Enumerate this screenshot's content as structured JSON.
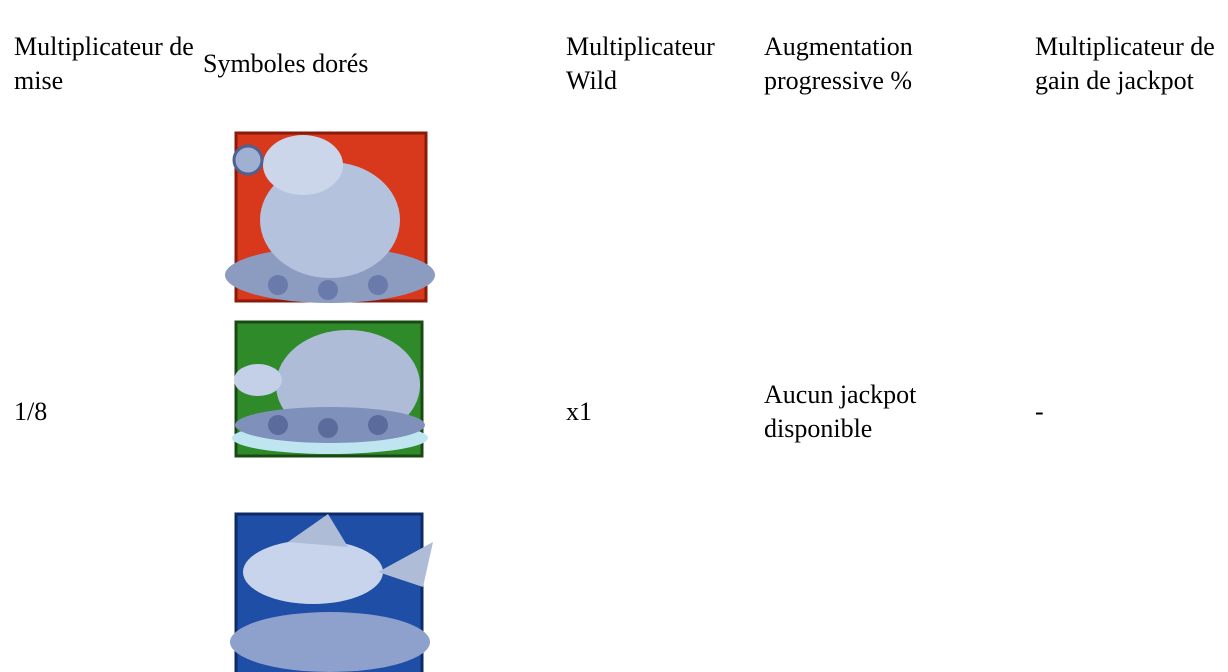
{
  "table": {
    "header": [
      "Multiplicateur de mise",
      "Symboles dorés",
      "Multiplicateur Wild",
      "Augmentation progressive %",
      "Multiplicateur de gain de jackpot"
    ],
    "rows": [
      [
        "1/8",
        "x1",
        "Aucun jackpot disponible",
        "-"
      ]
    ]
  }
}
